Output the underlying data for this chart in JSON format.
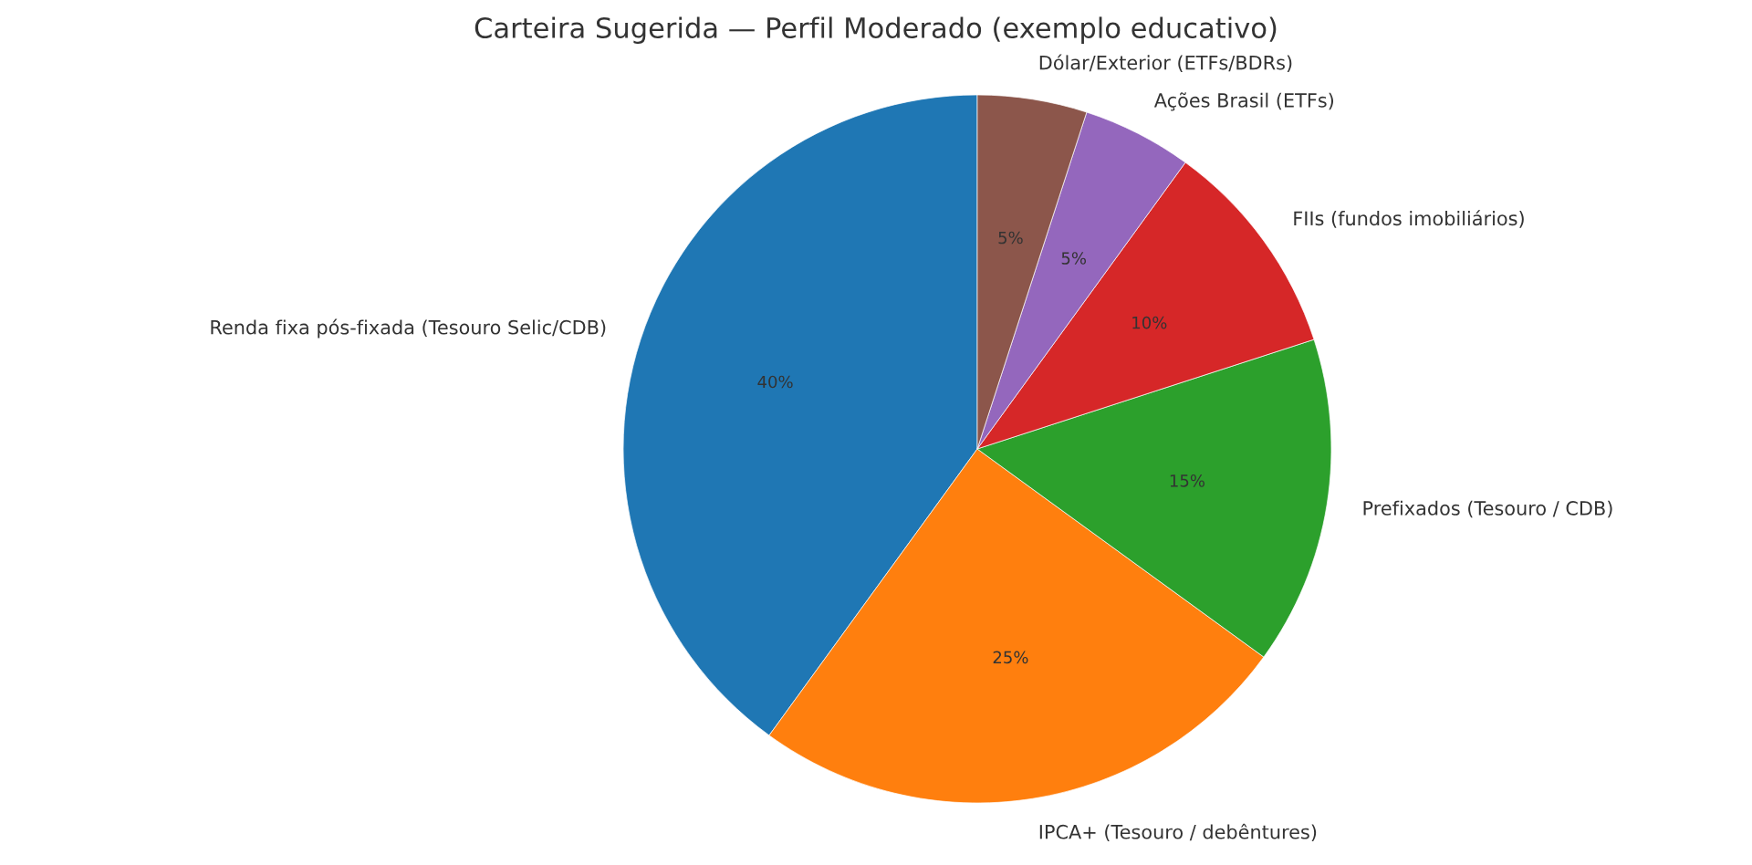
{
  "chart_data": {
    "type": "pie",
    "title": "Carteira Sugerida — Perfil Moderado (exemplo educativo)",
    "categories": [
      "Renda fixa pós-fixada (Tesouro Selic/CDB)",
      "IPCA+ (Tesouro / debêntures)",
      "Prefixados (Tesouro / CDB)",
      "FIIs (fundos imobiliários)",
      "Ações Brasil (ETFs)",
      "Dólar/Exterior (ETFs/BDRs)"
    ],
    "values": [
      40,
      25,
      15,
      10,
      5,
      5
    ],
    "colors": [
      "#1f77b4",
      "#ff7f0e",
      "#2ca02c",
      "#d62728",
      "#9467bd",
      "#8c564b"
    ],
    "value_labels": [
      "40%",
      "25%",
      "15%",
      "10%",
      "5%",
      "5%"
    ]
  }
}
